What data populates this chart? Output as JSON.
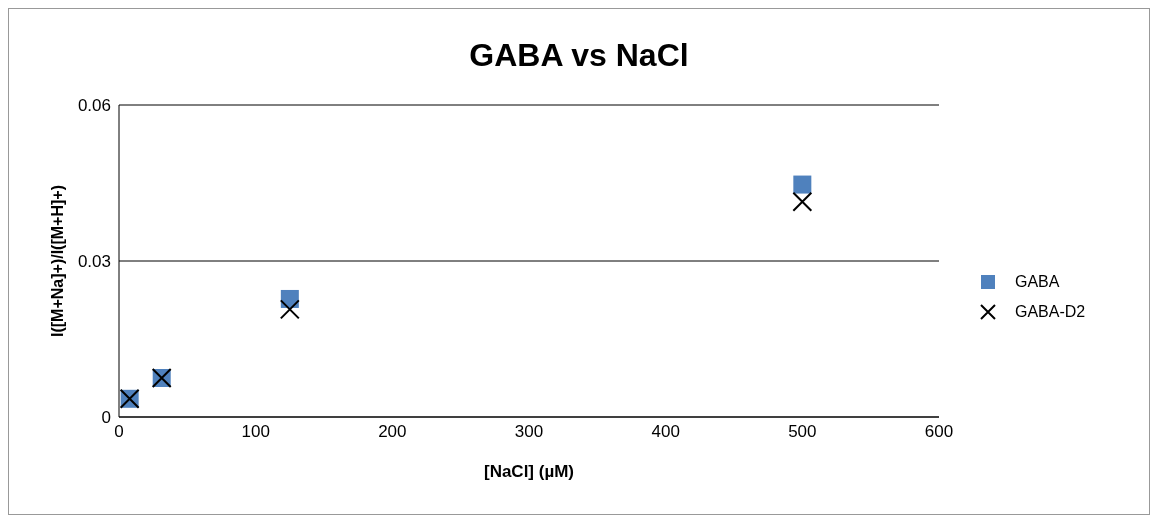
{
  "chart_data": {
    "type": "scatter",
    "title": "GABA vs NaCl",
    "xlabel": "[NaCl] (µM)",
    "ylabel": "I([M+Na]+)/I([M+H]+)",
    "x": [
      7.8,
      31.25,
      125,
      500
    ],
    "series": [
      {
        "name": "GABA",
        "color": "#4f81bd",
        "marker": "square",
        "values": [
          0.0035,
          0.0075,
          0.0227,
          0.0447
        ]
      },
      {
        "name": "GABA-D2",
        "color": "#000000",
        "marker": "cross",
        "values": [
          0.0035,
          0.0075,
          0.0207,
          0.0414
        ]
      }
    ],
    "xlim": [
      0,
      600
    ],
    "xticks": [
      0,
      100,
      200,
      300,
      400,
      500,
      600
    ],
    "ylim": [
      0,
      0.06
    ],
    "yticks": [
      0,
      0.03,
      0.06
    ],
    "grid": "y",
    "legend": "right"
  }
}
